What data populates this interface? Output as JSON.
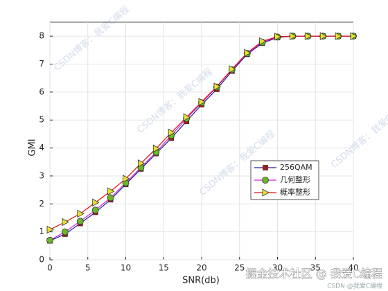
{
  "chart_data": {
    "type": "line",
    "x_label": "SNR(db)",
    "y_label": "GMI",
    "x": [
      0,
      2,
      4,
      6,
      8,
      10,
      12,
      14,
      16,
      18,
      20,
      22,
      24,
      26,
      28,
      30,
      32,
      34,
      36,
      38,
      40
    ],
    "series": [
      {
        "name": "256QAM",
        "color": "#1f1f9a",
        "marker": "square",
        "marker_color": "#b01818",
        "values": [
          0.68,
          0.92,
          1.3,
          1.7,
          2.15,
          2.7,
          3.25,
          3.8,
          4.35,
          4.95,
          5.55,
          6.1,
          6.75,
          7.35,
          7.75,
          7.95,
          8,
          8,
          8,
          8,
          8
        ]
      },
      {
        "name": "几何整形",
        "color": "#d020d0",
        "marker": "circle",
        "marker_color": "#6ab82a",
        "values": [
          0.7,
          1.0,
          1.38,
          1.78,
          2.22,
          2.75,
          3.3,
          3.85,
          4.45,
          5.05,
          5.62,
          6.18,
          6.8,
          7.38,
          7.78,
          7.97,
          8,
          8,
          8,
          8,
          8
        ]
      },
      {
        "name": "概率整形",
        "color": "#e01010",
        "marker": "triangle-right",
        "marker_color": "#e8e030",
        "values": [
          1.08,
          1.35,
          1.65,
          2.05,
          2.45,
          2.9,
          3.45,
          3.98,
          4.55,
          5.1,
          5.65,
          6.2,
          6.82,
          7.4,
          7.82,
          7.98,
          8,
          8,
          8,
          8,
          8
        ]
      }
    ],
    "xlim": [
      0,
      40
    ],
    "xticks": [
      0,
      5,
      10,
      15,
      20,
      25,
      30,
      35,
      40
    ],
    "ylim": [
      0,
      8.5
    ],
    "yticks": [
      0,
      1,
      2,
      3,
      4,
      5,
      6,
      7,
      8
    ],
    "grid": true,
    "legend": "lower-right"
  },
  "watermarks": [
    "CSDN博客：我爱C编程",
    "CSDN博客：我爱C编程",
    "CSDN博客：我爱C编程",
    "CSDN博客：我爱C编程",
    "掘金技术社区 @ 我爱C编程",
    "CSDN @我爱C编程"
  ]
}
